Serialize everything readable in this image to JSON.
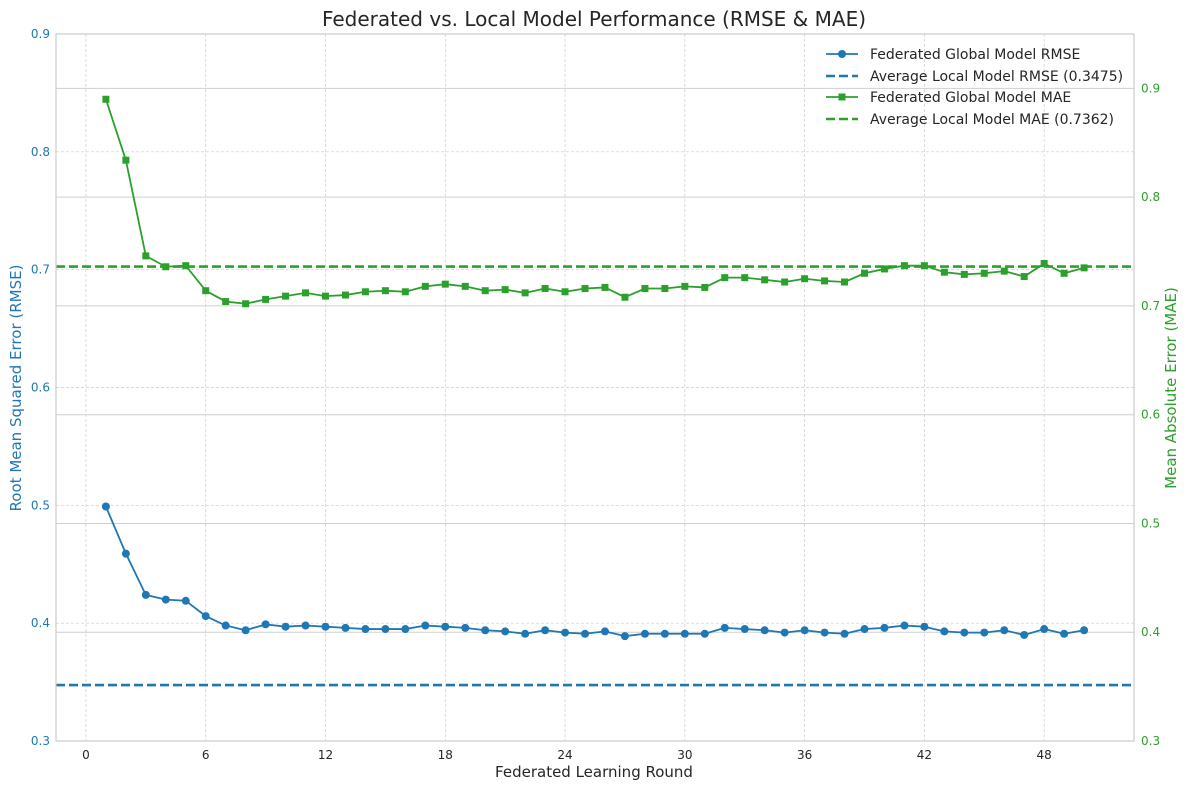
{
  "chart_data": {
    "type": "line",
    "title": "Federated vs. Local Model Performance (RMSE & MAE)",
    "xlabel": "Federated Learning Round",
    "ylabel_left": "Root Mean Squared Error (RMSE)",
    "ylabel_right": "Mean Absolute Error (MAE)",
    "xlim": [
      -1.5,
      52.5
    ],
    "xticks": [
      0,
      6,
      12,
      18,
      24,
      30,
      36,
      42,
      48
    ],
    "ylim_left": [
      0.3,
      0.9
    ],
    "yticks_left": [
      "0.3",
      "0.4",
      "0.5",
      "0.6",
      "0.7",
      "0.8",
      "0.9"
    ],
    "ylim_right": [
      0.3,
      0.95
    ],
    "yticks_right": [
      "0.3",
      "0.4",
      "0.5",
      "0.6",
      "0.7",
      "0.8",
      "0.9"
    ],
    "grid": true,
    "legend_position": "upper right",
    "x": [
      1,
      2,
      3,
      4,
      5,
      6,
      7,
      8,
      9,
      10,
      11,
      12,
      13,
      14,
      15,
      16,
      17,
      18,
      19,
      20,
      21,
      22,
      23,
      24,
      25,
      26,
      27,
      28,
      29,
      30,
      31,
      32,
      33,
      34,
      35,
      36,
      37,
      38,
      39,
      40,
      41,
      42,
      43,
      44,
      45,
      46,
      47,
      48,
      49,
      50
    ],
    "series": [
      {
        "name": "Federated Global Model RMSE",
        "axis": "left",
        "color": "#1f77b4",
        "marker": "circle",
        "style": "solid",
        "values": [
          0.499,
          0.459,
          0.424,
          0.42,
          0.419,
          0.406,
          0.398,
          0.394,
          0.399,
          0.397,
          0.398,
          0.397,
          0.396,
          0.395,
          0.395,
          0.395,
          0.398,
          0.397,
          0.396,
          0.394,
          0.393,
          0.391,
          0.394,
          0.392,
          0.391,
          0.393,
          0.389,
          0.391,
          0.391,
          0.391,
          0.391,
          0.396,
          0.395,
          0.394,
          0.392,
          0.394,
          0.392,
          0.391,
          0.395,
          0.396,
          0.398,
          0.397,
          0.393,
          0.392,
          0.392,
          0.394,
          0.39,
          0.395,
          0.391,
          0.394
        ]
      },
      {
        "name": "Average Local Model RMSE (0.3475)",
        "axis": "left",
        "color": "#1f77b4",
        "style": "dashed",
        "constant": 0.3475
      },
      {
        "name": "Federated Global Model MAE",
        "axis": "right",
        "color": "#2ca02c",
        "marker": "square",
        "style": "solid",
        "values": [
          0.89,
          0.834,
          0.746,
          0.736,
          0.737,
          0.714,
          0.704,
          0.702,
          0.706,
          0.709,
          0.712,
          0.709,
          0.71,
          0.713,
          0.714,
          0.713,
          0.718,
          0.72,
          0.718,
          0.714,
          0.715,
          0.712,
          0.716,
          0.713,
          0.716,
          0.717,
          0.708,
          0.716,
          0.716,
          0.718,
          0.717,
          0.726,
          0.726,
          0.724,
          0.722,
          0.725,
          0.723,
          0.722,
          0.73,
          0.734,
          0.737,
          0.737,
          0.731,
          0.729,
          0.73,
          0.732,
          0.727,
          0.739,
          0.73,
          0.735
        ]
      },
      {
        "name": "Average Local Model MAE (0.7362)",
        "axis": "right",
        "color": "#2ca02c",
        "style": "dashed",
        "constant": 0.7362
      }
    ]
  }
}
